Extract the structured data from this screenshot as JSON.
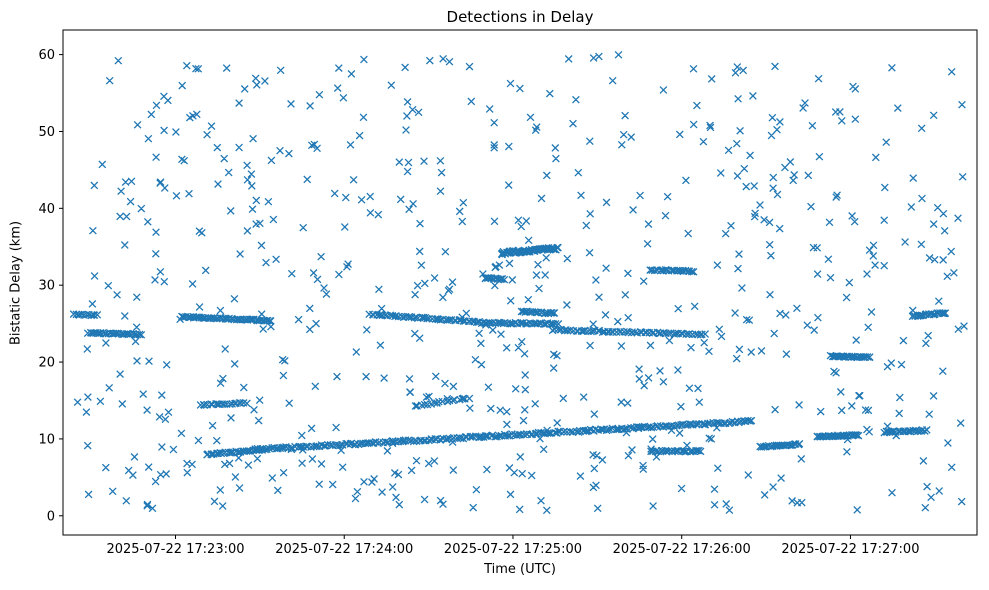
{
  "chart_data": {
    "type": "scatter",
    "title": "Detections in Delay",
    "xlabel": "Time (UTC)",
    "ylabel": "Bistatic Delay (km)",
    "marker": "x",
    "marker_color": "#1f77b4",
    "grid": false,
    "legend": "none",
    "x_axis": {
      "unit": "seconds after 2025-07-22 17:23:00 UTC",
      "range": [
        -40,
        285
      ],
      "tick_seconds": [
        0,
        60,
        120,
        180,
        240
      ],
      "tick_labels": [
        "2025-07-22 17:23:00",
        "2025-07-22 17:24:00",
        "2025-07-22 17:25:00",
        "2025-07-22 17:26:00",
        "2025-07-22 17:27:00"
      ]
    },
    "y_axis": {
      "range": [
        -2.5,
        63.2
      ],
      "ticks": [
        0,
        10,
        20,
        30,
        40,
        50,
        60
      ]
    },
    "tracks": [
      {
        "t0": -31,
        "t1": -12,
        "d0": 23.8,
        "d1": 23.6,
        "n": 30
      },
      {
        "t0": -36,
        "t1": -28,
        "d0": 26.2,
        "d1": 26.1,
        "n": 12
      },
      {
        "t0": 2,
        "t1": 34,
        "d0": 25.9,
        "d1": 25.4,
        "n": 55
      },
      {
        "t0": 69,
        "t1": 108,
        "d0": 26.2,
        "d1": 25.2,
        "n": 50
      },
      {
        "t0": 108,
        "t1": 136,
        "d0": 25.1,
        "d1": 25.0,
        "n": 40
      },
      {
        "t0": 123,
        "t1": 135,
        "d0": 26.6,
        "d1": 26.3,
        "n": 22
      },
      {
        "t0": 134,
        "t1": 188,
        "d0": 24.2,
        "d1": 23.6,
        "n": 65
      },
      {
        "t0": 110,
        "t1": 117,
        "d0": 30.9,
        "d1": 30.8,
        "n": 14
      },
      {
        "t0": 116,
        "t1": 136,
        "d0": 34.2,
        "d1": 34.8,
        "n": 60,
        "jitter": 0.18
      },
      {
        "t0": 169,
        "t1": 184,
        "d0": 32.0,
        "d1": 31.8,
        "n": 24
      },
      {
        "t0": 28,
        "t1": 205,
        "d0": 8.6,
        "d1": 12.3,
        "n": 230,
        "jitter": 0.12
      },
      {
        "t0": 9,
        "t1": 25,
        "d0": 14.4,
        "d1": 14.7,
        "n": 20
      },
      {
        "t0": 11,
        "t1": 31,
        "d0": 8.0,
        "d1": 8.6,
        "n": 30
      },
      {
        "t0": 169,
        "t1": 187,
        "d0": 8.4,
        "d1": 8.4,
        "n": 26
      },
      {
        "t0": 208,
        "t1": 222,
        "d0": 9.0,
        "d1": 9.3,
        "n": 24
      },
      {
        "t0": 228,
        "t1": 243,
        "d0": 10.3,
        "d1": 10.5,
        "n": 30
      },
      {
        "t0": 252,
        "t1": 267,
        "d0": 10.9,
        "d1": 11.1,
        "n": 26
      },
      {
        "t0": 233,
        "t1": 247,
        "d0": 20.8,
        "d1": 20.6,
        "n": 30
      },
      {
        "t0": 262,
        "t1": 274,
        "d0": 26.0,
        "d1": 26.4,
        "n": 22
      },
      {
        "t0": 85,
        "t1": 104,
        "d0": 14.3,
        "d1": 15.3,
        "n": 18
      }
    ],
    "noise": {
      "count": 650,
      "seed": 1337,
      "t_range": [
        -36,
        281
      ],
      "d_range": [
        0.7,
        60
      ]
    }
  }
}
